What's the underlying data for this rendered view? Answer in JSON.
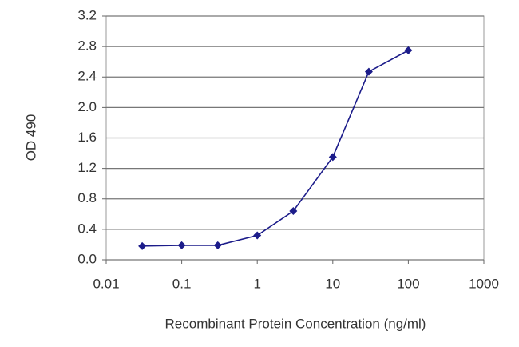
{
  "chart_data": {
    "type": "line",
    "x_label": "Recombinant Protein Concentration (ng/ml)",
    "y_label": "OD 490",
    "x": [
      0.03,
      0.1,
      0.3,
      1,
      3,
      10,
      30,
      100
    ],
    "values": [
      0.18,
      0.19,
      0.19,
      0.32,
      0.64,
      1.35,
      2.47,
      2.75
    ],
    "color": "#1c1c8a",
    "xlim": [
      0.01,
      1000
    ],
    "xticks": [
      0.01,
      0.1,
      1,
      10,
      100,
      1000
    ],
    "log_x": true,
    "ylim": [
      0,
      3.2
    ],
    "yticks": [
      {
        "value": 0,
        "label": "0.0"
      },
      0.4,
      0.8,
      1.2,
      1.6,
      {
        "value": 2,
        "label": "2.0"
      },
      2.4,
      2.8,
      3.2
    ],
    "grid": true
  }
}
